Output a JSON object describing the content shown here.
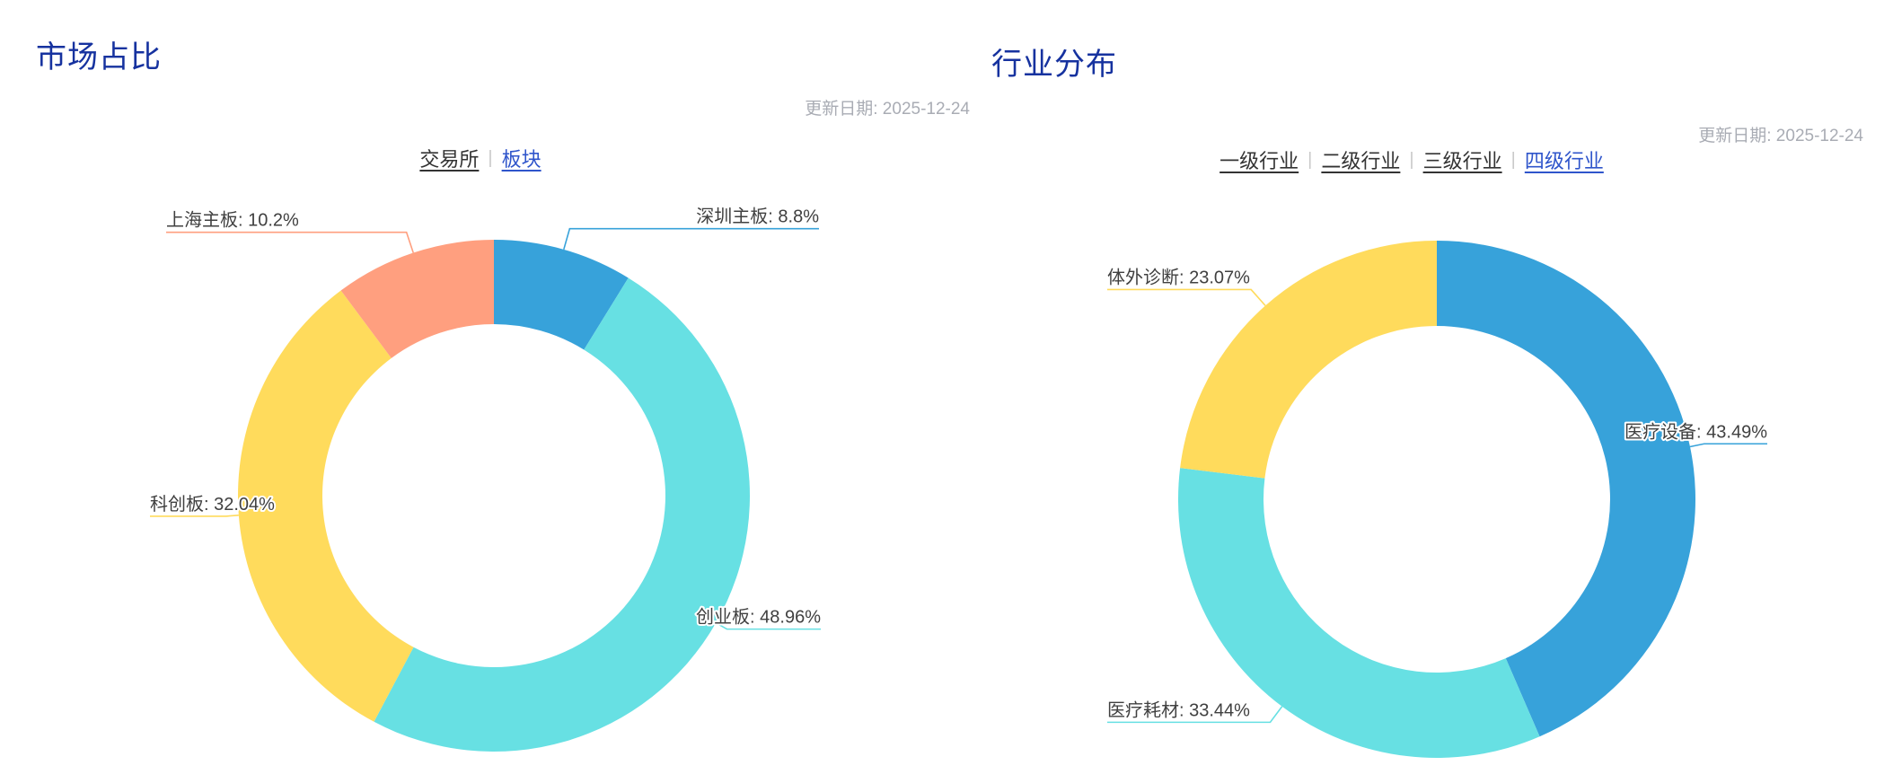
{
  "theme": {
    "title_color": "#16329F",
    "active_tab_color": "#2F55CB",
    "inactive_tab_color": "#333333",
    "date_color": "#A9ACB4",
    "label_text_color": "#404040",
    "palette": [
      "#37A2DA",
      "#67E0E3",
      "#FFDB5C",
      "#FF9F7F"
    ]
  },
  "chart_data": [
    {
      "type": "pie",
      "donut": true,
      "inner_radius_pct": 67,
      "title": "市场占比",
      "update_date": "更新日期: 2025-12-24",
      "tabs": [
        "交易所",
        "板块"
      ],
      "active_tab": "板块",
      "label_format": "{name}: {value}%",
      "legend_position": "none",
      "slices": [
        {
          "label": "深圳主板",
          "value": 8.8,
          "color": "#37A2DA"
        },
        {
          "label": "创业板",
          "value": 48.96,
          "color": "#67E0E3"
        },
        {
          "label": "科创板",
          "value": 32.04,
          "color": "#FFDB5C"
        },
        {
          "label": "上海主板",
          "value": 10.2,
          "color": "#FF9F7F"
        }
      ]
    },
    {
      "type": "pie",
      "donut": true,
      "inner_radius_pct": 67,
      "title": "行业分布",
      "update_date": "更新日期: 2025-12-24",
      "tabs": [
        "一级行业",
        "二级行业",
        "三级行业",
        "四级行业"
      ],
      "active_tab": "四级行业",
      "label_format": "{name}: {value}%",
      "legend_position": "none",
      "slices": [
        {
          "label": "医疗设备",
          "value": 43.49,
          "color": "#37A2DA"
        },
        {
          "label": "医疗耗材",
          "value": 33.44,
          "color": "#67E0E3"
        },
        {
          "label": "体外诊断",
          "value": 23.07,
          "color": "#FFDB5C"
        }
      ]
    }
  ]
}
